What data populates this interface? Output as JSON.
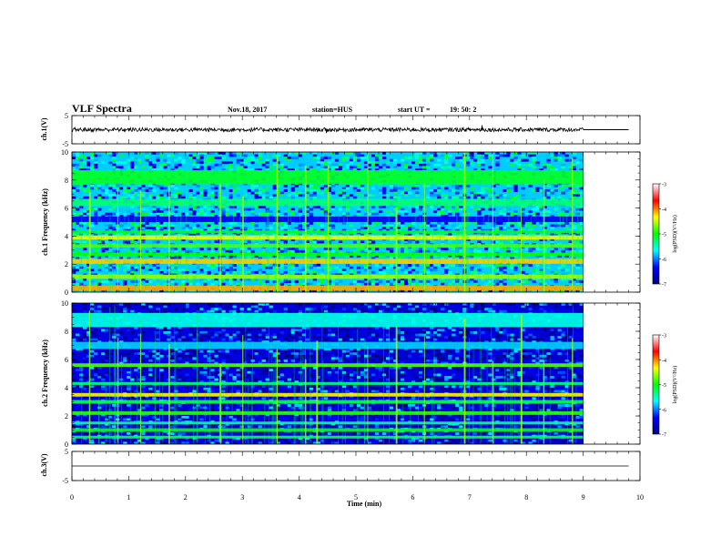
{
  "header": {
    "title": "VLF Spectra",
    "date": "Nov.18, 2017",
    "station": "station=HUS",
    "start_label": "start UT =",
    "start_time": "19: 50: 2"
  },
  "colorbar": {
    "label": "log(PSD)(V²/Hz)",
    "ticks": [
      -3,
      -4,
      -5,
      -6,
      -7
    ],
    "range": [
      -7,
      -3
    ],
    "colors": [
      "#000080",
      "#0000ff",
      "#00ffff",
      "#00ff00",
      "#ffff00",
      "#ff0000",
      "#ffffff"
    ]
  },
  "chart_data": [
    {
      "type": "line",
      "panel": "ch1-waveform",
      "ylabel": "ch.1(V)",
      "ylim": [
        -5,
        5
      ],
      "yticks": [
        5,
        -5
      ],
      "xlim": [
        0,
        10
      ],
      "data_end_min": 9.0,
      "flat_until_min": 9.8,
      "amplitude_v": 0.7,
      "spikes": [
        {
          "x": 7.22,
          "y": 1.6
        },
        {
          "x": 4.48,
          "y": -1.2
        }
      ]
    },
    {
      "type": "heatmap",
      "panel": "ch1-spectrogram",
      "ylabel": "ch.1 Frequency (kHz)",
      "ylim": [
        0,
        10
      ],
      "yticks": [
        0,
        2,
        4,
        6,
        8,
        10
      ],
      "xlim": [
        0,
        10
      ],
      "data_end_min": 9.0,
      "blank_until_min": 9.8,
      "background_log_psd": -5.8,
      "bands_khz": [
        {
          "f": 0.3,
          "w": 0.35,
          "level": -4.1
        },
        {
          "f": 1.1,
          "w": 0.3,
          "level": -4.6
        },
        {
          "f": 2.2,
          "w": 0.35,
          "level": -4.2
        },
        {
          "f": 2.7,
          "w": 0.2,
          "level": -5.0
        },
        {
          "f": 3.3,
          "w": 0.25,
          "level": -4.8
        },
        {
          "f": 3.9,
          "w": 0.3,
          "level": -4.4
        },
        {
          "f": 4.3,
          "w": 0.2,
          "level": -5.0
        },
        {
          "f": 5.2,
          "w": 0.4,
          "level": -6.4
        },
        {
          "f": 6.4,
          "w": 0.5,
          "level": -5.3
        },
        {
          "f": 8.2,
          "w": 1.0,
          "level": -5.1
        }
      ],
      "bursts_min": [
        0.3,
        0.8,
        1.2,
        1.7,
        2.6,
        3.0,
        3.6,
        4.1,
        4.5,
        5.2,
        5.7,
        6.2,
        6.9,
        7.4,
        7.9,
        8.3,
        8.8
      ]
    },
    {
      "type": "heatmap",
      "panel": "ch2-spectrogram",
      "ylabel": "ch.2 Frequency (kHz)",
      "ylim": [
        0,
        10
      ],
      "yticks": [
        0,
        2,
        4,
        6,
        8,
        10
      ],
      "xlim": [
        0,
        10
      ],
      "data_end_min": 9.0,
      "blank_until_min": 9.8,
      "background_log_psd": -6.5,
      "bands_khz": [
        {
          "f": 0.5,
          "w": 0.2,
          "level": -5.2
        },
        {
          "f": 1.0,
          "w": 0.25,
          "level": -5.0
        },
        {
          "f": 1.5,
          "w": 0.2,
          "level": -5.4
        },
        {
          "f": 2.2,
          "w": 0.25,
          "level": -4.9
        },
        {
          "f": 3.0,
          "w": 0.25,
          "level": -5.2
        },
        {
          "f": 3.5,
          "w": 0.25,
          "level": -4.3
        },
        {
          "f": 4.3,
          "w": 0.2,
          "level": -5.3
        },
        {
          "f": 5.6,
          "w": 0.25,
          "level": -4.8
        },
        {
          "f": 7.0,
          "w": 0.5,
          "level": -5.8
        },
        {
          "f": 8.8,
          "w": 1.0,
          "level": -5.6
        }
      ],
      "bursts_min": [
        0.3,
        0.8,
        1.2,
        1.7,
        2.6,
        3.0,
        3.6,
        4.1,
        4.3,
        5.2,
        5.7,
        6.2,
        6.9,
        7.4,
        7.9,
        8.3,
        8.8
      ]
    },
    {
      "type": "line",
      "panel": "ch3-waveform",
      "ylabel": "ch.3(V)",
      "ylim": [
        -5,
        5
      ],
      "yticks": [
        5,
        -5
      ],
      "xlim": [
        0,
        10
      ],
      "constant_y": 0,
      "line_until_min": 9.8
    }
  ],
  "x_axis": {
    "label": "Time (min)",
    "ticks": [
      0,
      1,
      2,
      3,
      4,
      5,
      6,
      7,
      8,
      9,
      10
    ]
  }
}
